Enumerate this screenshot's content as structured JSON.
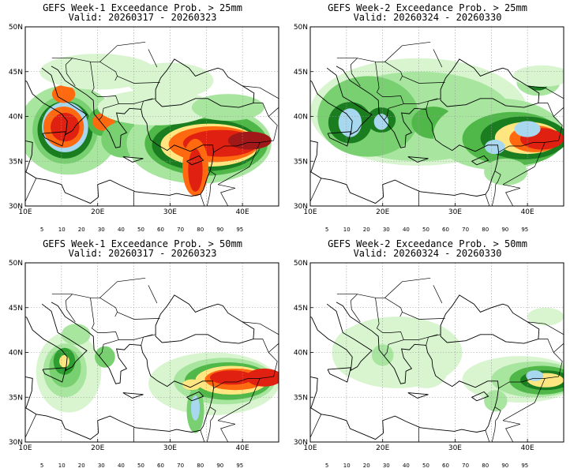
{
  "panels": [
    {
      "title": "GEFS Week-1 Exceedance Prob. > 25mm",
      "valid": "Valid: 20260317 - 20260323"
    },
    {
      "title": "GEFS Week-2 Exceedance Prob. > 25mm",
      "valid": "Valid: 20260324 - 20260330"
    },
    {
      "title": "GEFS Week-1 Exceedance Prob. > 50mm",
      "valid": "Valid: 20260317 - 20260323"
    },
    {
      "title": "GEFS Week-2 Exceedance Prob. > 50mm",
      "valid": "Valid: 20260324 - 20260330"
    }
  ],
  "axes": {
    "lat_labels": [
      "50N",
      "45N",
      "40N",
      "35N",
      "30N"
    ],
    "lon_labels": [
      "10E",
      "20E",
      "30E",
      "40E"
    ]
  },
  "colorbar": {
    "labels": [
      "5",
      "10",
      "20",
      "30",
      "40",
      "50",
      "60",
      "70",
      "80",
      "90",
      "95"
    ],
    "colors": [
      "#ffffff",
      "#d8f5d0",
      "#a8e6a0",
      "#78d070",
      "#50b848",
      "#2e9e30",
      "#1a7d1f",
      "#a8d8f0",
      "#ffe680",
      "#ffb030",
      "#ff6a10",
      "#e02010",
      "#a01818"
    ]
  }
}
